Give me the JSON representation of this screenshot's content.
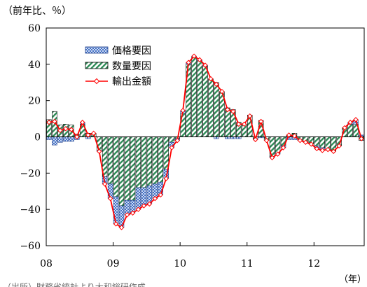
{
  "chart_data": {
    "type": "bar",
    "unit_label": "（前年比、％）",
    "xlabel": "（年）",
    "source_note": "（出所）財務省統計より大和総研作成",
    "ylim": [
      -60,
      60
    ],
    "y_ticks": [
      60,
      40,
      20,
      0,
      -20,
      -40,
      -60
    ],
    "year_labels": [
      "08",
      "09",
      "10",
      "11",
      "12"
    ],
    "months_count": 57,
    "legend_position": "top-left",
    "colors": {
      "price": "#4472c4",
      "volume": "#2e8b57",
      "total": "#ff0000"
    },
    "series": [
      {
        "name": "価格要因",
        "values": [
          -1.5,
          -4.5,
          -3,
          -2.5,
          -2.5,
          -1.5,
          1,
          -1,
          0,
          -0.5,
          -4,
          -8,
          -15,
          -12,
          -8,
          -7,
          -12,
          -10,
          -10,
          -8,
          -7,
          -5,
          -3,
          -1,
          1.5,
          1,
          0.5,
          0.5,
          0.5,
          0,
          -1,
          0,
          -1,
          -1,
          -1,
          0,
          0,
          -0.5,
          -0.5,
          0,
          -0.5,
          -0.5,
          -1,
          -1.5,
          -1.5,
          0,
          0,
          0,
          -1.5,
          -1.5,
          0,
          0,
          0,
          0,
          1,
          2.5,
          1
        ]
      },
      {
        "name": "数量要因",
        "values": [
          9.5,
          14,
          6.5,
          7,
          6.5,
          1.5,
          7,
          2,
          2,
          -7.5,
          -22,
          -26,
          -33,
          -38,
          -35,
          -35,
          -28,
          -28,
          -27,
          -26,
          -25,
          -18,
          -3,
          -1,
          13,
          40,
          44,
          42,
          39,
          32,
          30,
          25,
          16,
          15,
          8,
          7,
          12,
          -1,
          9,
          -2,
          -11,
          -9,
          -5,
          1,
          2,
          -2,
          -3,
          -4,
          -5,
          -6,
          -7,
          -8,
          -5,
          5,
          7,
          7,
          -2
        ]
      },
      {
        "name": "輸出金額",
        "values": [
          8,
          8.5,
          3.5,
          4.5,
          4,
          0,
          8,
          1,
          2,
          -8,
          -26,
          -34,
          -48,
          -50,
          -43,
          -42,
          -40,
          -38,
          -37,
          -34,
          -32,
          -23,
          -6,
          -2,
          14.5,
          41,
          44.5,
          42.5,
          39.5,
          32,
          29,
          25,
          15,
          14,
          7,
          7,
          11.5,
          -1.5,
          8.5,
          -2,
          -11.5,
          -9.5,
          -6,
          1,
          0.5,
          -2,
          -3,
          -4,
          -6.5,
          -7.5,
          -7,
          -8,
          -5,
          5,
          8,
          9.5,
          -1
        ]
      }
    ]
  }
}
